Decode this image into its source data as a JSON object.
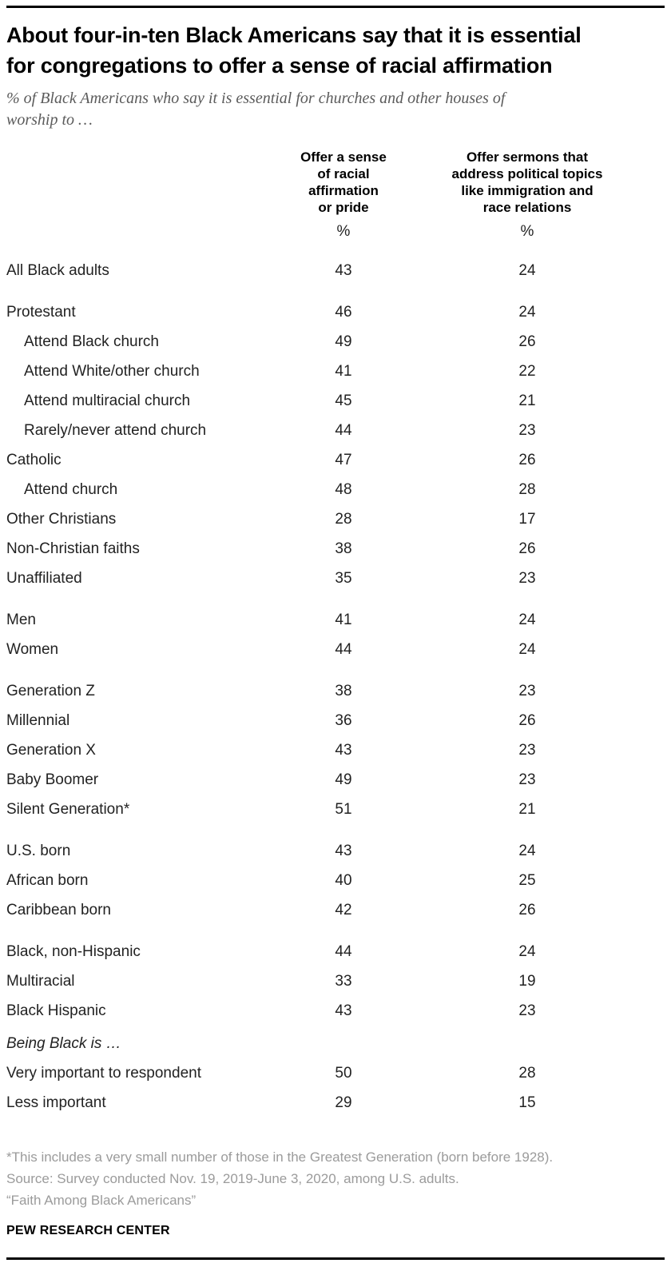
{
  "chart_data": {
    "type": "table",
    "title": "About four-in-ten Black Americans say that it is essential\nfor congregations to offer a sense of racial affirmation",
    "subtitle": "% of Black Americans who say it is essential for churches and other houses of\nworship to …",
    "unit_symbol": "%",
    "columns": [
      {
        "label": "Offer a sense of racial affirmation or pride",
        "label_display": "Offer a sense\nof racial\naffirmation\nor pride"
      },
      {
        "label": "Offer sermons that address political topics like immigration and race relations",
        "label_display": "Offer sermons that\naddress political topics\nlike immigration and\nrace relations"
      }
    ],
    "rows": [
      {
        "label": "All Black adults",
        "indent": 0,
        "values": [
          43,
          24
        ],
        "group_start": false
      },
      {
        "label": "Protestant",
        "indent": 0,
        "values": [
          46,
          24
        ],
        "group_start": true
      },
      {
        "label": "Attend Black church",
        "indent": 1,
        "values": [
          49,
          26
        ],
        "group_start": false
      },
      {
        "label": "Attend White/other church",
        "indent": 1,
        "values": [
          41,
          22
        ],
        "group_start": false
      },
      {
        "label": "Attend multiracial church",
        "indent": 1,
        "values": [
          45,
          21
        ],
        "group_start": false
      },
      {
        "label": "Rarely/never attend church",
        "indent": 1,
        "values": [
          44,
          23
        ],
        "group_start": false
      },
      {
        "label": "Catholic",
        "indent": 0,
        "values": [
          47,
          26
        ],
        "group_start": false
      },
      {
        "label": "Attend church",
        "indent": 1,
        "values": [
          48,
          28
        ],
        "group_start": false
      },
      {
        "label": "Other Christians",
        "indent": 0,
        "values": [
          28,
          17
        ],
        "group_start": false
      },
      {
        "label": "Non-Christian faiths",
        "indent": 0,
        "values": [
          38,
          26
        ],
        "group_start": false
      },
      {
        "label": "Unaffiliated",
        "indent": 0,
        "values": [
          35,
          23
        ],
        "group_start": false
      },
      {
        "label": "Men",
        "indent": 0,
        "values": [
          41,
          24
        ],
        "group_start": true
      },
      {
        "label": "Women",
        "indent": 0,
        "values": [
          44,
          24
        ],
        "group_start": false
      },
      {
        "label": "Generation Z",
        "indent": 0,
        "values": [
          38,
          23
        ],
        "group_start": true
      },
      {
        "label": "Millennial",
        "indent": 0,
        "values": [
          36,
          26
        ],
        "group_start": false
      },
      {
        "label": "Generation X",
        "indent": 0,
        "values": [
          43,
          23
        ],
        "group_start": false
      },
      {
        "label": "Baby Boomer",
        "indent": 0,
        "values": [
          49,
          23
        ],
        "group_start": false
      },
      {
        "label": "Silent Generation*",
        "indent": 0,
        "values": [
          51,
          21
        ],
        "group_start": false
      },
      {
        "label": "U.S. born",
        "indent": 0,
        "values": [
          43,
          24
        ],
        "group_start": true
      },
      {
        "label": "African born",
        "indent": 0,
        "values": [
          40,
          25
        ],
        "group_start": false
      },
      {
        "label": "Caribbean born",
        "indent": 0,
        "values": [
          42,
          26
        ],
        "group_start": false
      },
      {
        "label": "Black, non-Hispanic",
        "indent": 0,
        "values": [
          44,
          24
        ],
        "group_start": true
      },
      {
        "label": "Multiracial",
        "indent": 0,
        "values": [
          33,
          19
        ],
        "group_start": false
      },
      {
        "label": "Black Hispanic",
        "indent": 0,
        "values": [
          43,
          23
        ],
        "group_start": false
      },
      {
        "label": "Being Black is …",
        "indent": 0,
        "values": [
          null,
          null
        ],
        "group_start": false,
        "small_gap": true,
        "italic": true
      },
      {
        "label": "Very important to respondent",
        "indent": 0,
        "values": [
          50,
          28
        ],
        "group_start": false
      },
      {
        "label": "Less important",
        "indent": 0,
        "values": [
          29,
          15
        ],
        "group_start": false
      }
    ]
  },
  "footer": {
    "notes": [
      "*This includes a very small number of those in the Greatest Generation (born before 1928).",
      "Source: Survey conducted Nov. 19, 2019-June 3, 2020, among U.S. adults.",
      "“Faith Among Black Americans”"
    ],
    "brand": "PEW RESEARCH CENTER"
  },
  "colors": {
    "title": "#000000",
    "subtitle": "#5b5b5b",
    "body_text": "#222222",
    "note": "#9b9b9b",
    "rule": "#000000"
  }
}
